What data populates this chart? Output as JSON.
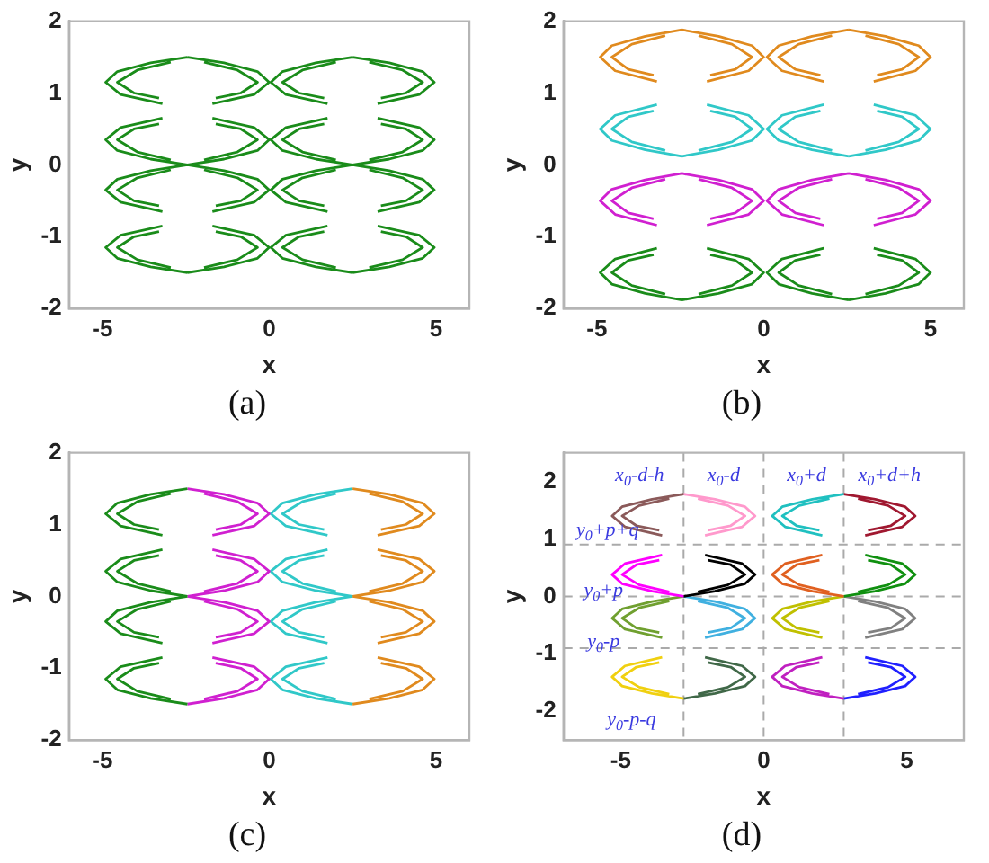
{
  "chart_data": [
    {
      "type": "line",
      "xlabel": "x",
      "ylabel": "y",
      "xlim": [
        -6,
        6
      ],
      "ylim": [
        -2,
        2
      ],
      "xticks": [
        -5,
        0,
        5
      ],
      "yticks": [
        -2,
        -1,
        0,
        1,
        2
      ],
      "annotations": [
        "(a)"
      ],
      "series": [
        {
          "color": "#1a8c1a",
          "x": [
            -2.45,
            -3.55,
            -4.55,
            -4.9,
            -4.45,
            -3.2,
            null,
            -2.95,
            -3.95,
            -4.55,
            -4.05,
            -3.3,
            null,
            -2.45,
            -3.55,
            -4.55,
            -4.9,
            -4.45,
            -3.2,
            null,
            -2.95,
            -3.95,
            -4.55,
            -4.05,
            -3.3,
            null,
            -2.45,
            -3.55,
            -4.55,
            -4.9,
            -4.45,
            -3.2,
            null,
            -2.95,
            -3.95,
            -4.55,
            -4.05,
            -3.3,
            null,
            -2.45,
            -3.55,
            -4.55,
            -4.9,
            -4.45,
            -3.2,
            null,
            -2.95,
            -3.95,
            -4.55,
            -4.05,
            -3.3,
            null,
            -2.45,
            -1.35,
            -0.35,
            0,
            -0.45,
            -1.7,
            null,
            -1.95,
            -0.95,
            -0.35,
            -0.85,
            -1.6,
            null,
            -2.45,
            -1.35,
            -0.35,
            0,
            -0.45,
            -1.7,
            null,
            -1.95,
            -0.95,
            -0.35,
            -0.85,
            -1.6,
            null,
            -2.45,
            -1.35,
            -0.35,
            0,
            -0.45,
            -1.7,
            null,
            -1.95,
            -0.95,
            -0.35,
            -0.85,
            -1.6,
            null,
            -2.45,
            -1.35,
            -0.35,
            0,
            -0.45,
            -1.7,
            null,
            -1.95,
            -0.95,
            -0.35,
            -0.85,
            -1.6,
            null,
            2.5,
            1.4,
            0.4,
            0.05,
            0.5,
            1.75,
            null,
            2,
            1,
            0.4,
            0.9,
            1.65,
            null,
            2.5,
            1.4,
            0.4,
            0.05,
            0.5,
            1.75,
            null,
            2,
            1,
            0.4,
            0.9,
            1.65,
            null,
            2.5,
            1.4,
            0.4,
            0.05,
            0.5,
            1.75,
            null,
            2,
            1,
            0.4,
            0.9,
            1.65,
            null,
            2.5,
            1.4,
            0.4,
            0.05,
            0.5,
            1.75,
            null,
            2,
            1,
            0.4,
            0.9,
            1.65,
            null,
            2.5,
            3.6,
            4.6,
            4.95,
            4.5,
            3.25,
            null,
            3,
            4,
            4.6,
            4.1,
            3.35,
            null,
            2.5,
            3.6,
            4.6,
            4.95,
            4.5,
            3.25,
            null,
            3,
            4,
            4.6,
            4.1,
            3.35,
            null,
            2.5,
            3.6,
            4.6,
            4.95,
            4.5,
            3.25,
            null,
            3,
            4,
            4.6,
            4.1,
            3.35,
            null,
            2.5,
            3.6,
            4.6,
            4.95,
            4.5,
            3.25,
            null,
            3,
            4,
            4.6,
            4.1,
            3.35
          ],
          "values": [
            1.5,
            1.42,
            1.3,
            1.15,
            0.98,
            0.85,
            null,
            1.43,
            1.32,
            1.15,
            1,
            0.93,
            null,
            0,
            0.08,
            0.2,
            0.35,
            0.52,
            0.65,
            null,
            0.07,
            0.18,
            0.35,
            0.5,
            0.57,
            null,
            0,
            -0.08,
            -0.2,
            -0.35,
            -0.52,
            -0.65,
            null,
            -0.07,
            -0.18,
            -0.35,
            -0.5,
            -0.57,
            null,
            -1.5,
            -1.42,
            -1.3,
            -1.15,
            -0.98,
            -0.85,
            null,
            -1.43,
            -1.32,
            -1.15,
            -1,
            -0.93,
            null,
            1.5,
            1.42,
            1.3,
            1.15,
            0.98,
            0.85,
            null,
            1.43,
            1.32,
            1.15,
            1,
            0.93,
            null,
            0,
            0.08,
            0.2,
            0.35,
            0.52,
            0.65,
            null,
            0.07,
            0.18,
            0.35,
            0.5,
            0.57,
            null,
            0,
            -0.08,
            -0.2,
            -0.35,
            -0.52,
            -0.65,
            null,
            -0.07,
            -0.18,
            -0.35,
            -0.5,
            -0.57,
            null,
            -1.5,
            -1.42,
            -1.3,
            -1.15,
            -0.98,
            -0.85,
            null,
            -1.43,
            -1.32,
            -1.15,
            -1,
            -0.93,
            null,
            1.5,
            1.42,
            1.3,
            1.15,
            0.98,
            0.85,
            null,
            1.43,
            1.32,
            1.15,
            1,
            0.93,
            null,
            0,
            0.08,
            0.2,
            0.35,
            0.52,
            0.65,
            null,
            0.07,
            0.18,
            0.35,
            0.5,
            0.57,
            null,
            0,
            -0.08,
            -0.2,
            -0.35,
            -0.52,
            -0.65,
            null,
            -0.07,
            -0.18,
            -0.35,
            -0.5,
            -0.57,
            null,
            -1.5,
            -1.42,
            -1.3,
            -1.15,
            -0.98,
            -0.85,
            null,
            -1.43,
            -1.32,
            -1.15,
            -1,
            -0.93,
            null,
            1.5,
            1.42,
            1.3,
            1.15,
            0.98,
            0.85,
            null,
            1.43,
            1.32,
            1.15,
            1,
            0.93,
            null,
            0,
            0.08,
            0.2,
            0.35,
            0.52,
            0.65,
            null,
            0.07,
            0.18,
            0.35,
            0.5,
            0.57,
            null,
            0,
            -0.08,
            -0.2,
            -0.35,
            -0.52,
            -0.65,
            null,
            -0.07,
            -0.18,
            -0.35,
            -0.5,
            -0.57,
            null,
            -1.5,
            -1.42,
            -1.3,
            -1.15,
            -0.98,
            -0.85,
            null,
            -1.43,
            -1.32,
            -1.15,
            -1,
            -0.93
          ]
        }
      ]
    },
    {
      "type": "line",
      "xlabel": "x",
      "ylabel": "y",
      "xlim": [
        -6,
        6
      ],
      "ylim": [
        -2,
        2
      ],
      "xticks": [
        -5,
        0,
        5
      ],
      "yticks": [
        -2,
        -1,
        0,
        1,
        2
      ],
      "annotations": [
        "(b)"
      ],
      "series": [
        {
          "color": "#e08a1e",
          "x": [
            -2.45,
            -3.55,
            -4.55,
            -4.9,
            -4.45,
            -3.2,
            null,
            -2.95,
            -3.95,
            -4.55,
            -4.05,
            -3.3,
            null,
            -2.45,
            -1.35,
            -0.35,
            0,
            -0.45,
            -1.7,
            null,
            -1.95,
            -0.95,
            -0.35,
            -0.85,
            -1.6,
            null,
            2.55,
            1.45,
            0.45,
            0.1,
            0.55,
            1.8,
            null,
            2.05,
            1.05,
            0.45,
            0.95,
            1.7,
            null,
            2.55,
            3.65,
            4.65,
            5,
            4.55,
            3.3,
            null,
            3.05,
            4.05,
            4.65,
            4.15,
            3.4
          ],
          "values": [
            1.88,
            1.79,
            1.66,
            1.5,
            1.31,
            1.16,
            null,
            1.8,
            1.68,
            1.5,
            1.33,
            1.25,
            null,
            1.88,
            1.79,
            1.66,
            1.5,
            1.31,
            1.16,
            null,
            1.8,
            1.68,
            1.5,
            1.33,
            1.25,
            null,
            1.88,
            1.79,
            1.66,
            1.5,
            1.31,
            1.16,
            null,
            1.8,
            1.68,
            1.5,
            1.33,
            1.25,
            null,
            1.88,
            1.79,
            1.66,
            1.5,
            1.31,
            1.16,
            null,
            1.8,
            1.68,
            1.5,
            1.33,
            1.25
          ]
        },
        {
          "color": "#30c8c8",
          "x": [
            -2.45,
            -3.55,
            -4.55,
            -4.9,
            -4.45,
            -3.2,
            null,
            -2.95,
            -3.95,
            -4.55,
            -4.05,
            -3.3,
            null,
            -2.45,
            -1.35,
            -0.35,
            0,
            -0.45,
            -1.7,
            null,
            -1.95,
            -0.95,
            -0.35,
            -0.85,
            -1.6,
            null,
            2.55,
            1.45,
            0.45,
            0.1,
            0.55,
            1.8,
            null,
            2.05,
            1.05,
            0.45,
            0.95,
            1.7,
            null,
            2.55,
            3.65,
            4.65,
            5,
            4.55,
            3.3,
            null,
            3.05,
            4.05,
            4.65,
            4.15,
            3.4
          ],
          "values": [
            0.12,
            0.21,
            0.34,
            0.5,
            0.69,
            0.84,
            null,
            0.2,
            0.32,
            0.5,
            0.67,
            0.75,
            null,
            0.12,
            0.21,
            0.34,
            0.5,
            0.69,
            0.84,
            null,
            0.2,
            0.32,
            0.5,
            0.67,
            0.75,
            null,
            0.12,
            0.21,
            0.34,
            0.5,
            0.69,
            0.84,
            null,
            0.2,
            0.32,
            0.5,
            0.67,
            0.75,
            null,
            0.12,
            0.21,
            0.34,
            0.5,
            0.69,
            0.84,
            null,
            0.2,
            0.32,
            0.5,
            0.67,
            0.75
          ]
        },
        {
          "color": "#d020d0",
          "x": [
            -2.45,
            -3.55,
            -4.55,
            -4.9,
            -4.45,
            -3.2,
            null,
            -2.95,
            -3.95,
            -4.55,
            -4.05,
            -3.3,
            null,
            -2.45,
            -1.35,
            -0.35,
            0,
            -0.45,
            -1.7,
            null,
            -1.95,
            -0.95,
            -0.35,
            -0.85,
            -1.6,
            null,
            2.55,
            1.45,
            0.45,
            0.1,
            0.55,
            1.8,
            null,
            2.05,
            1.05,
            0.45,
            0.95,
            1.7,
            null,
            2.55,
            3.65,
            4.65,
            5,
            4.55,
            3.3,
            null,
            3.05,
            4.05,
            4.65,
            4.15,
            3.4
          ],
          "values": [
            -0.12,
            -0.21,
            -0.34,
            -0.5,
            -0.69,
            -0.84,
            null,
            -0.2,
            -0.32,
            -0.5,
            -0.67,
            -0.75,
            null,
            -0.12,
            -0.21,
            -0.34,
            -0.5,
            -0.69,
            -0.84,
            null,
            -0.2,
            -0.32,
            -0.5,
            -0.67,
            -0.75,
            null,
            -0.12,
            -0.21,
            -0.34,
            -0.5,
            -0.69,
            -0.84,
            null,
            -0.2,
            -0.32,
            -0.5,
            -0.67,
            -0.75,
            null,
            -0.12,
            -0.21,
            -0.34,
            -0.5,
            -0.69,
            -0.84,
            null,
            -0.2,
            -0.32,
            -0.5,
            -0.67,
            -0.75
          ]
        },
        {
          "color": "#1a8c1a",
          "x": [
            -2.45,
            -3.55,
            -4.55,
            -4.9,
            -4.45,
            -3.2,
            null,
            -2.95,
            -3.95,
            -4.55,
            -4.05,
            -3.3,
            null,
            -2.45,
            -1.35,
            -0.35,
            0,
            -0.45,
            -1.7,
            null,
            -1.95,
            -0.95,
            -0.35,
            -0.85,
            -1.6,
            null,
            2.55,
            1.45,
            0.45,
            0.1,
            0.55,
            1.8,
            null,
            2.05,
            1.05,
            0.45,
            0.95,
            1.7,
            null,
            2.55,
            3.65,
            4.65,
            5,
            4.55,
            3.3,
            null,
            3.05,
            4.05,
            4.65,
            4.15,
            3.4
          ],
          "values": [
            -1.88,
            -1.79,
            -1.66,
            -1.5,
            -1.31,
            -1.16,
            null,
            -1.8,
            -1.68,
            -1.5,
            -1.33,
            -1.25,
            null,
            -1.88,
            -1.79,
            -1.66,
            -1.5,
            -1.31,
            -1.16,
            null,
            -1.8,
            -1.68,
            -1.5,
            -1.33,
            -1.25,
            null,
            -1.88,
            -1.79,
            -1.66,
            -1.5,
            -1.31,
            -1.16,
            null,
            -1.8,
            -1.68,
            -1.5,
            -1.33,
            -1.25,
            null,
            -1.88,
            -1.79,
            -1.66,
            -1.5,
            -1.31,
            -1.16,
            null,
            -1.8,
            -1.68,
            -1.5,
            -1.33,
            -1.25
          ]
        }
      ]
    },
    {
      "type": "line",
      "xlabel": "x",
      "ylabel": "y",
      "xlim": [
        -6,
        6
      ],
      "ylim": [
        -2,
        2
      ],
      "xticks": [
        -5,
        0,
        5
      ],
      "yticks": [
        -2,
        -1,
        0,
        1,
        2
      ],
      "annotations": [
        "(c)"
      ],
      "series": [
        {
          "color": "#1a8c1a",
          "x": [
            -2.45,
            -3.55,
            -4.55,
            -4.9,
            -4.45,
            -3.2,
            null,
            -2.95,
            -3.95,
            -4.55,
            -4.05,
            -3.3,
            null,
            -2.45,
            -3.55,
            -4.55,
            -4.9,
            -4.45,
            -3.2,
            null,
            -2.95,
            -3.95,
            -4.55,
            -4.05,
            -3.3,
            null,
            -2.45,
            -3.55,
            -4.55,
            -4.9,
            -4.45,
            -3.2,
            null,
            -2.95,
            -3.95,
            -4.55,
            -4.05,
            -3.3,
            null,
            -2.45,
            -3.55,
            -4.55,
            -4.9,
            -4.45,
            -3.2,
            null,
            -2.95,
            -3.95,
            -4.55,
            -4.05,
            -3.3
          ],
          "values": [
            1.5,
            1.42,
            1.3,
            1.15,
            0.98,
            0.85,
            null,
            1.43,
            1.32,
            1.15,
            1,
            0.93,
            null,
            0,
            0.08,
            0.2,
            0.35,
            0.52,
            0.65,
            null,
            0.07,
            0.18,
            0.35,
            0.5,
            0.57,
            null,
            0,
            -0.08,
            -0.2,
            -0.35,
            -0.52,
            -0.65,
            null,
            -0.07,
            -0.18,
            -0.35,
            -0.5,
            -0.57,
            null,
            -1.5,
            -1.42,
            -1.3,
            -1.15,
            -0.98,
            -0.85,
            null,
            -1.43,
            -1.32,
            -1.15,
            -1,
            -0.93
          ]
        },
        {
          "color": "#d020d0",
          "x": [
            -2.45,
            -1.35,
            -0.35,
            0,
            -0.45,
            -1.7,
            null,
            -1.95,
            -0.95,
            -0.35,
            -0.85,
            -1.6,
            null,
            -2.45,
            -1.35,
            -0.35,
            0,
            -0.45,
            -1.7,
            null,
            -1.95,
            -0.95,
            -0.35,
            -0.85,
            -1.6,
            null,
            -2.45,
            -1.35,
            -0.35,
            0,
            -0.45,
            -1.7,
            null,
            -1.95,
            -0.95,
            -0.35,
            -0.85,
            -1.6,
            null,
            -2.45,
            -1.35,
            -0.35,
            0,
            -0.45,
            -1.7,
            null,
            -1.95,
            -0.95,
            -0.35,
            -0.85,
            -1.6
          ],
          "values": [
            1.5,
            1.42,
            1.3,
            1.15,
            0.98,
            0.85,
            null,
            1.43,
            1.32,
            1.15,
            1,
            0.93,
            null,
            0,
            0.08,
            0.2,
            0.35,
            0.52,
            0.65,
            null,
            0.07,
            0.18,
            0.35,
            0.5,
            0.57,
            null,
            0,
            -0.08,
            -0.2,
            -0.35,
            -0.52,
            -0.65,
            null,
            -0.07,
            -0.18,
            -0.35,
            -0.5,
            -0.57,
            null,
            -1.5,
            -1.42,
            -1.3,
            -1.15,
            -0.98,
            -0.85,
            null,
            -1.43,
            -1.32,
            -1.15,
            -1,
            -0.93
          ]
        },
        {
          "color": "#30c8c8",
          "x": [
            2.5,
            1.4,
            0.4,
            0.05,
            0.5,
            1.75,
            null,
            2,
            1,
            0.4,
            0.9,
            1.65,
            null,
            2.5,
            1.4,
            0.4,
            0.05,
            0.5,
            1.75,
            null,
            2,
            1,
            0.4,
            0.9,
            1.65,
            null,
            2.5,
            1.4,
            0.4,
            0.05,
            0.5,
            1.75,
            null,
            2,
            1,
            0.4,
            0.9,
            1.65,
            null,
            2.5,
            1.4,
            0.4,
            0.05,
            0.5,
            1.75,
            null,
            2,
            1,
            0.4,
            0.9,
            1.65
          ],
          "values": [
            1.5,
            1.42,
            1.3,
            1.15,
            0.98,
            0.85,
            null,
            1.43,
            1.32,
            1.15,
            1,
            0.93,
            null,
            0,
            0.08,
            0.2,
            0.35,
            0.52,
            0.65,
            null,
            0.07,
            0.18,
            0.35,
            0.5,
            0.57,
            null,
            0,
            -0.08,
            -0.2,
            -0.35,
            -0.52,
            -0.65,
            null,
            -0.07,
            -0.18,
            -0.35,
            -0.5,
            -0.57,
            null,
            -1.5,
            -1.42,
            -1.3,
            -1.15,
            -0.98,
            -0.85,
            null,
            -1.43,
            -1.32,
            -1.15,
            -1,
            -0.93
          ]
        },
        {
          "color": "#e08a1e",
          "x": [
            2.5,
            3.6,
            4.6,
            4.95,
            4.5,
            3.25,
            null,
            3,
            4,
            4.6,
            4.1,
            3.35,
            null,
            2.5,
            3.6,
            4.6,
            4.95,
            4.5,
            3.25,
            null,
            3,
            4,
            4.6,
            4.1,
            3.35,
            null,
            2.5,
            3.6,
            4.6,
            4.95,
            4.5,
            3.25,
            null,
            3,
            4,
            4.6,
            4.1,
            3.35,
            null,
            2.5,
            3.6,
            4.6,
            4.95,
            4.5,
            3.25,
            null,
            3,
            4,
            4.6,
            4.1,
            3.35
          ],
          "values": [
            1.5,
            1.42,
            1.3,
            1.15,
            0.98,
            0.85,
            null,
            1.43,
            1.32,
            1.15,
            1,
            0.93,
            null,
            0,
            0.08,
            0.2,
            0.35,
            0.52,
            0.65,
            null,
            0.07,
            0.18,
            0.35,
            0.5,
            0.57,
            null,
            0,
            -0.08,
            -0.2,
            -0.35,
            -0.52,
            -0.65,
            null,
            -0.07,
            -0.18,
            -0.35,
            -0.5,
            -0.57,
            null,
            -1.5,
            -1.42,
            -1.3,
            -1.15,
            -0.98,
            -0.85,
            null,
            -1.43,
            -1.32,
            -1.15,
            -1,
            -0.93
          ]
        }
      ]
    },
    {
      "type": "line",
      "xlabel": "x",
      "ylabel": "y",
      "xlim": [
        -7,
        7
      ],
      "ylim": [
        -2.5,
        2.5
      ],
      "xticks": [
        -5,
        0,
        5
      ],
      "yticks": [
        -2,
        -1,
        0,
        1,
        2
      ],
      "ref_lines": [
        {
          "axis": "x",
          "value": -2.8,
          "color": "#aaaaaa",
          "line_style": "dashed"
        },
        {
          "axis": "x",
          "value": 0,
          "color": "#aaaaaa",
          "line_style": "dashed"
        },
        {
          "axis": "x",
          "value": 2.8,
          "color": "#aaaaaa",
          "line_style": "dashed"
        },
        {
          "axis": "y",
          "value": 0.9,
          "color": "#aaaaaa",
          "line_style": "dashed"
        },
        {
          "axis": "y",
          "value": 0,
          "color": "#aaaaaa",
          "line_style": "dashed"
        },
        {
          "axis": "y",
          "value": -0.9,
          "color": "#aaaaaa",
          "line_style": "dashed"
        }
      ],
      "annotations": [
        "x$_{0}$-d-h",
        "x$_{0}$-d",
        "x$_{0}$+d",
        "x$_{0}$+d+h",
        "y$_{0}$+p+q",
        "y$_{0}$+p",
        "y$_{0}$-p",
        "y$_{0}$-p-q",
        "(d)"
      ],
      "series": [
        {
          "color": "#8b5a5a",
          "x": [
            -2.8,
            -3.9,
            -4.95,
            -5.3,
            -4.85,
            -3.55,
            null,
            -3.3,
            -4.35,
            -4.95,
            -4.45,
            -3.65
          ],
          "values": [
            1.78,
            1.69,
            1.56,
            1.4,
            1.21,
            1.06,
            null,
            1.7,
            1.58,
            1.4,
            1.23,
            1.15
          ]
        },
        {
          "color": "#ff99cc",
          "x": [
            -2.8,
            -1.7,
            -0.65,
            -0.3,
            -0.75,
            -2.05,
            null,
            -2.3,
            -1.25,
            -0.65,
            -1.15,
            -1.95
          ],
          "values": [
            1.78,
            1.69,
            1.56,
            1.4,
            1.21,
            1.06,
            null,
            1.7,
            1.58,
            1.4,
            1.23,
            1.15
          ]
        },
        {
          "color": "#20c0c0",
          "x": [
            2.8,
            1.7,
            0.65,
            0.3,
            0.75,
            2.05,
            null,
            2.3,
            1.25,
            0.65,
            1.15,
            1.95
          ],
          "values": [
            1.78,
            1.69,
            1.56,
            1.4,
            1.21,
            1.06,
            null,
            1.7,
            1.58,
            1.4,
            1.23,
            1.15
          ]
        },
        {
          "color": "#a01830",
          "x": [
            2.8,
            3.9,
            4.95,
            5.3,
            4.85,
            3.55,
            null,
            3.3,
            4.35,
            4.95,
            4.45,
            3.65
          ],
          "values": [
            1.78,
            1.69,
            1.56,
            1.4,
            1.21,
            1.06,
            null,
            1.7,
            1.58,
            1.4,
            1.23,
            1.15
          ]
        },
        {
          "color": "#ff00ff",
          "x": [
            -2.8,
            -3.9,
            -4.95,
            -5.3,
            -4.85,
            -3.55,
            null,
            -3.3,
            -4.35,
            -4.95,
            -4.45,
            -3.65
          ],
          "values": [
            0,
            0.09,
            0.22,
            0.38,
            0.57,
            0.72,
            null,
            0.08,
            0.2,
            0.38,
            0.55,
            0.63
          ]
        },
        {
          "color": "#000000",
          "x": [
            -2.8,
            -1.7,
            -0.65,
            -0.3,
            -0.75,
            -2.05,
            null,
            -2.3,
            -1.25,
            -0.65,
            -1.15,
            -1.95
          ],
          "values": [
            0,
            0.09,
            0.22,
            0.38,
            0.57,
            0.72,
            null,
            0.08,
            0.2,
            0.38,
            0.55,
            0.63
          ]
        },
        {
          "color": "#e06020",
          "x": [
            2.8,
            1.7,
            0.65,
            0.3,
            0.75,
            2.05,
            null,
            2.3,
            1.25,
            0.65,
            1.15,
            1.95
          ],
          "values": [
            0,
            0.09,
            0.22,
            0.38,
            0.57,
            0.72,
            null,
            0.08,
            0.2,
            0.38,
            0.55,
            0.63
          ]
        },
        {
          "color": "#109010",
          "x": [
            2.8,
            3.9,
            4.95,
            5.3,
            4.85,
            3.55,
            null,
            3.3,
            4.35,
            4.95,
            4.45,
            3.65
          ],
          "values": [
            0,
            0.09,
            0.22,
            0.38,
            0.57,
            0.72,
            null,
            0.08,
            0.2,
            0.38,
            0.55,
            0.63
          ]
        },
        {
          "color": "#70a030",
          "x": [
            -2.8,
            -3.9,
            -4.95,
            -5.3,
            -4.85,
            -3.55,
            null,
            -3.3,
            -4.35,
            -4.95,
            -4.45,
            -3.65
          ],
          "values": [
            0,
            -0.09,
            -0.22,
            -0.38,
            -0.57,
            -0.72,
            null,
            -0.08,
            -0.2,
            -0.38,
            -0.55,
            -0.63
          ]
        },
        {
          "color": "#40b0e0",
          "x": [
            -2.8,
            -1.7,
            -0.65,
            -0.3,
            -0.75,
            -2.05,
            null,
            -2.3,
            -1.25,
            -0.65,
            -1.15,
            -1.95
          ],
          "values": [
            0,
            -0.09,
            -0.22,
            -0.38,
            -0.57,
            -0.72,
            null,
            -0.08,
            -0.2,
            -0.38,
            -0.55,
            -0.63
          ]
        },
        {
          "color": "#c0c000",
          "x": [
            2.8,
            1.7,
            0.65,
            0.3,
            0.75,
            2.05,
            null,
            2.3,
            1.25,
            0.65,
            1.15,
            1.95
          ],
          "values": [
            0,
            -0.09,
            -0.22,
            -0.38,
            -0.57,
            -0.72,
            null,
            -0.08,
            -0.2,
            -0.38,
            -0.55,
            -0.63
          ]
        },
        {
          "color": "#808080",
          "x": [
            2.8,
            3.9,
            4.95,
            5.3,
            4.85,
            3.55,
            null,
            3.3,
            4.35,
            4.95,
            4.45,
            3.65
          ],
          "values": [
            0,
            -0.09,
            -0.22,
            -0.38,
            -0.57,
            -0.72,
            null,
            -0.08,
            -0.2,
            -0.38,
            -0.55,
            -0.63
          ]
        },
        {
          "color": "#f0d010",
          "x": [
            -2.8,
            -3.9,
            -4.95,
            -5.3,
            -4.85,
            -3.55,
            null,
            -3.3,
            -4.35,
            -4.95,
            -4.45,
            -3.65
          ],
          "values": [
            -1.78,
            -1.69,
            -1.56,
            -1.4,
            -1.21,
            -1.06,
            null,
            -1.7,
            -1.58,
            -1.4,
            -1.23,
            -1.15
          ]
        },
        {
          "color": "#406848",
          "x": [
            -2.8,
            -1.7,
            -0.65,
            -0.3,
            -0.75,
            -2.05,
            null,
            -2.3,
            -1.25,
            -0.65,
            -1.15,
            -1.95
          ],
          "values": [
            -1.78,
            -1.69,
            -1.56,
            -1.4,
            -1.21,
            -1.06,
            null,
            -1.7,
            -1.58,
            -1.4,
            -1.23,
            -1.15
          ]
        },
        {
          "color": "#c020c0",
          "x": [
            2.8,
            1.7,
            0.65,
            0.3,
            0.75,
            2.05,
            null,
            2.3,
            1.25,
            0.65,
            1.15,
            1.95
          ],
          "values": [
            -1.78,
            -1.69,
            -1.56,
            -1.4,
            -1.21,
            -1.06,
            null,
            -1.7,
            -1.58,
            -1.4,
            -1.23,
            -1.15
          ]
        },
        {
          "color": "#2020ff",
          "x": [
            2.8,
            3.9,
            4.95,
            5.3,
            4.85,
            3.55,
            null,
            3.3,
            4.35,
            4.95,
            4.45,
            3.65
          ],
          "values": [
            -1.78,
            -1.69,
            -1.56,
            -1.4,
            -1.21,
            -1.06,
            null,
            -1.7,
            -1.58,
            -1.4,
            -1.23,
            -1.15
          ]
        }
      ]
    }
  ]
}
